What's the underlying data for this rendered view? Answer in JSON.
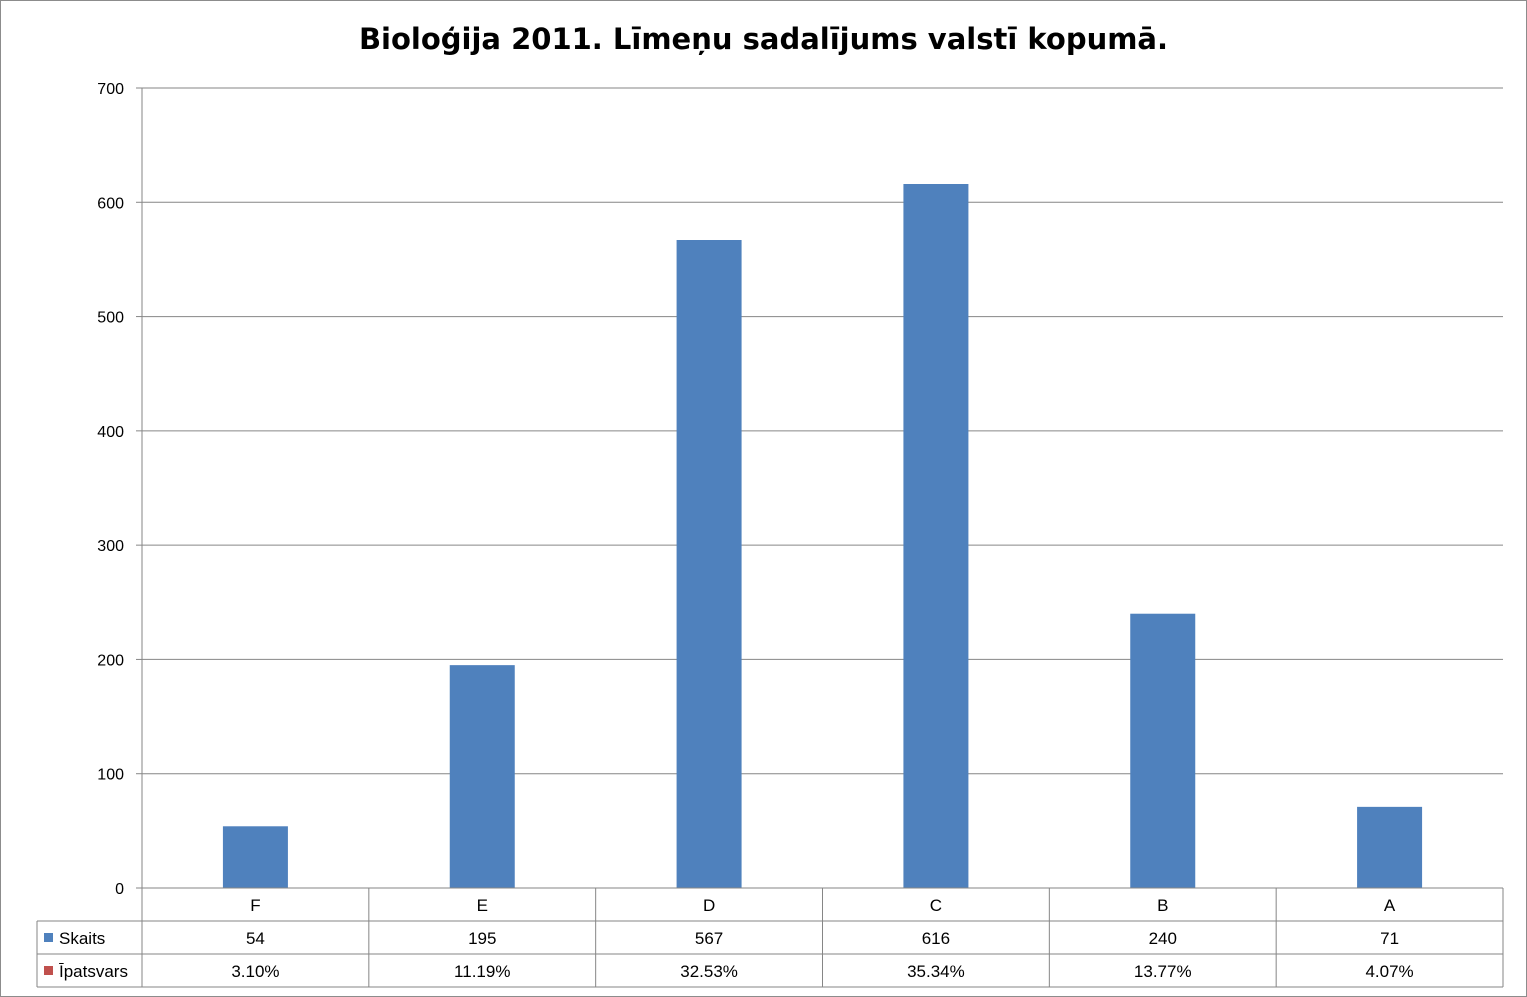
{
  "chart_data": {
    "type": "bar",
    "title": "Bioloģija 2011. Līmeņu sadalījums valstī kopumā.",
    "categories": [
      "F",
      "E",
      "D",
      "C",
      "B",
      "A"
    ],
    "series": [
      {
        "name": "Skaits",
        "values": [
          54,
          195,
          567,
          616,
          240,
          71
        ],
        "color": "#4f81bd",
        "plotted": true
      },
      {
        "name": "Īpatsvars",
        "values": [
          0.031,
          0.1119,
          0.3253,
          0.3534,
          0.1377,
          0.0407
        ],
        "labels": [
          "3.10%",
          "11.19%",
          "32.53%",
          "35.34%",
          "13.77%",
          "4.07%"
        ],
        "color": "#c0504d",
        "plotted": false
      }
    ],
    "y_ticks": [
      "0",
      "100",
      "200",
      "300",
      "400",
      "500",
      "600",
      "700"
    ],
    "ylim": [
      0,
      700
    ],
    "grid": true,
    "legend": "data-table"
  }
}
